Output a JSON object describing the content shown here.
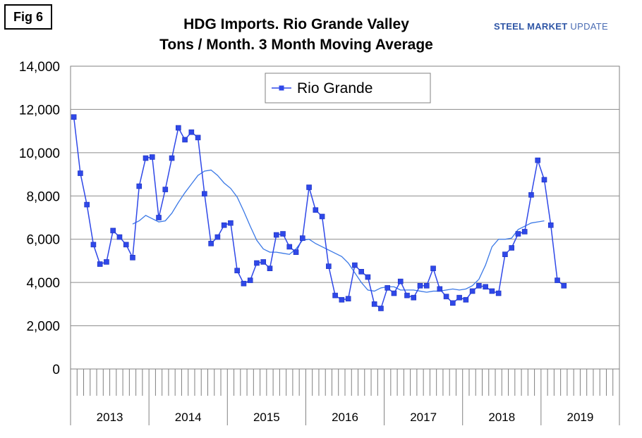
{
  "fig_label": "Fig 6",
  "title_line1": "HDG Imports. Rio Grande Valley",
  "title_line2": "Tons / Month. 3 Month Moving Average",
  "brand_bold": "STEEL MARKET",
  "brand_light": "UPDATE",
  "chart_data": {
    "type": "line",
    "title": "HDG Imports. Rio Grande Valley Tons / Month. 3 Month Moving Average",
    "ylim": [
      0,
      14000
    ],
    "yticks": [
      0,
      2000,
      4000,
      6000,
      8000,
      10000,
      12000,
      14000
    ],
    "ytick_labels": [
      "0",
      "2,000",
      "4,000",
      "6,000",
      "8,000",
      "10,000",
      "12,000",
      "14,000"
    ],
    "x_unit": "month",
    "x_start": "2013-01",
    "months_total": 84,
    "years": [
      "2013",
      "2014",
      "2015",
      "2016",
      "2017",
      "2018",
      "2019"
    ],
    "grid": true,
    "legend_position": "top-left",
    "series": [
      {
        "name": "Rio Grande",
        "color": "#2f48e8",
        "marker": "square",
        "values": [
          11650,
          9050,
          7600,
          5750,
          4850,
          4950,
          6400,
          6100,
          5750,
          5150,
          8450,
          9750,
          9800,
          7000,
          8300,
          9750,
          11150,
          10600,
          10950,
          10700,
          8100,
          5800,
          6100,
          6650,
          6750,
          4550,
          3950,
          4100,
          4900,
          4950,
          4650,
          6200,
          6250,
          5650,
          5400,
          6050,
          8400,
          7350,
          7050,
          4750,
          3400,
          3200,
          3250,
          4800,
          4500,
          4250,
          3000,
          2800,
          3750,
          3500,
          4050,
          3400,
          3300,
          3850,
          3850,
          4650,
          3700,
          3350,
          3050,
          3300,
          3200,
          3600,
          3850,
          3800,
          3600,
          3500,
          5300,
          5600,
          6250,
          6350,
          8050,
          9650,
          8750,
          6650,
          4100,
          3850
        ]
      },
      {
        "name": "",
        "color": "#3a78e6",
        "marker": "none",
        "start_index": 9,
        "values": [
          6700,
          6850,
          7100,
          6950,
          6800,
          6850,
          7200,
          7700,
          8150,
          8550,
          8950,
          9150,
          9200,
          8950,
          8600,
          8350,
          7950,
          7300,
          6600,
          5950,
          5550,
          5400,
          5400,
          5350,
          5300,
          5550,
          5950,
          6000,
          5800,
          5650,
          5500,
          5350,
          5200,
          4900,
          4450,
          4000,
          3650,
          3600,
          3750,
          3800,
          3800,
          3650,
          3650,
          3650,
          3600,
          3550,
          3600,
          3600,
          3650,
          3700,
          3650,
          3700,
          3850,
          4150,
          4800,
          5650,
          6000,
          6000,
          6050,
          6450,
          6600,
          6750,
          6800,
          6850
        ]
      }
    ]
  }
}
